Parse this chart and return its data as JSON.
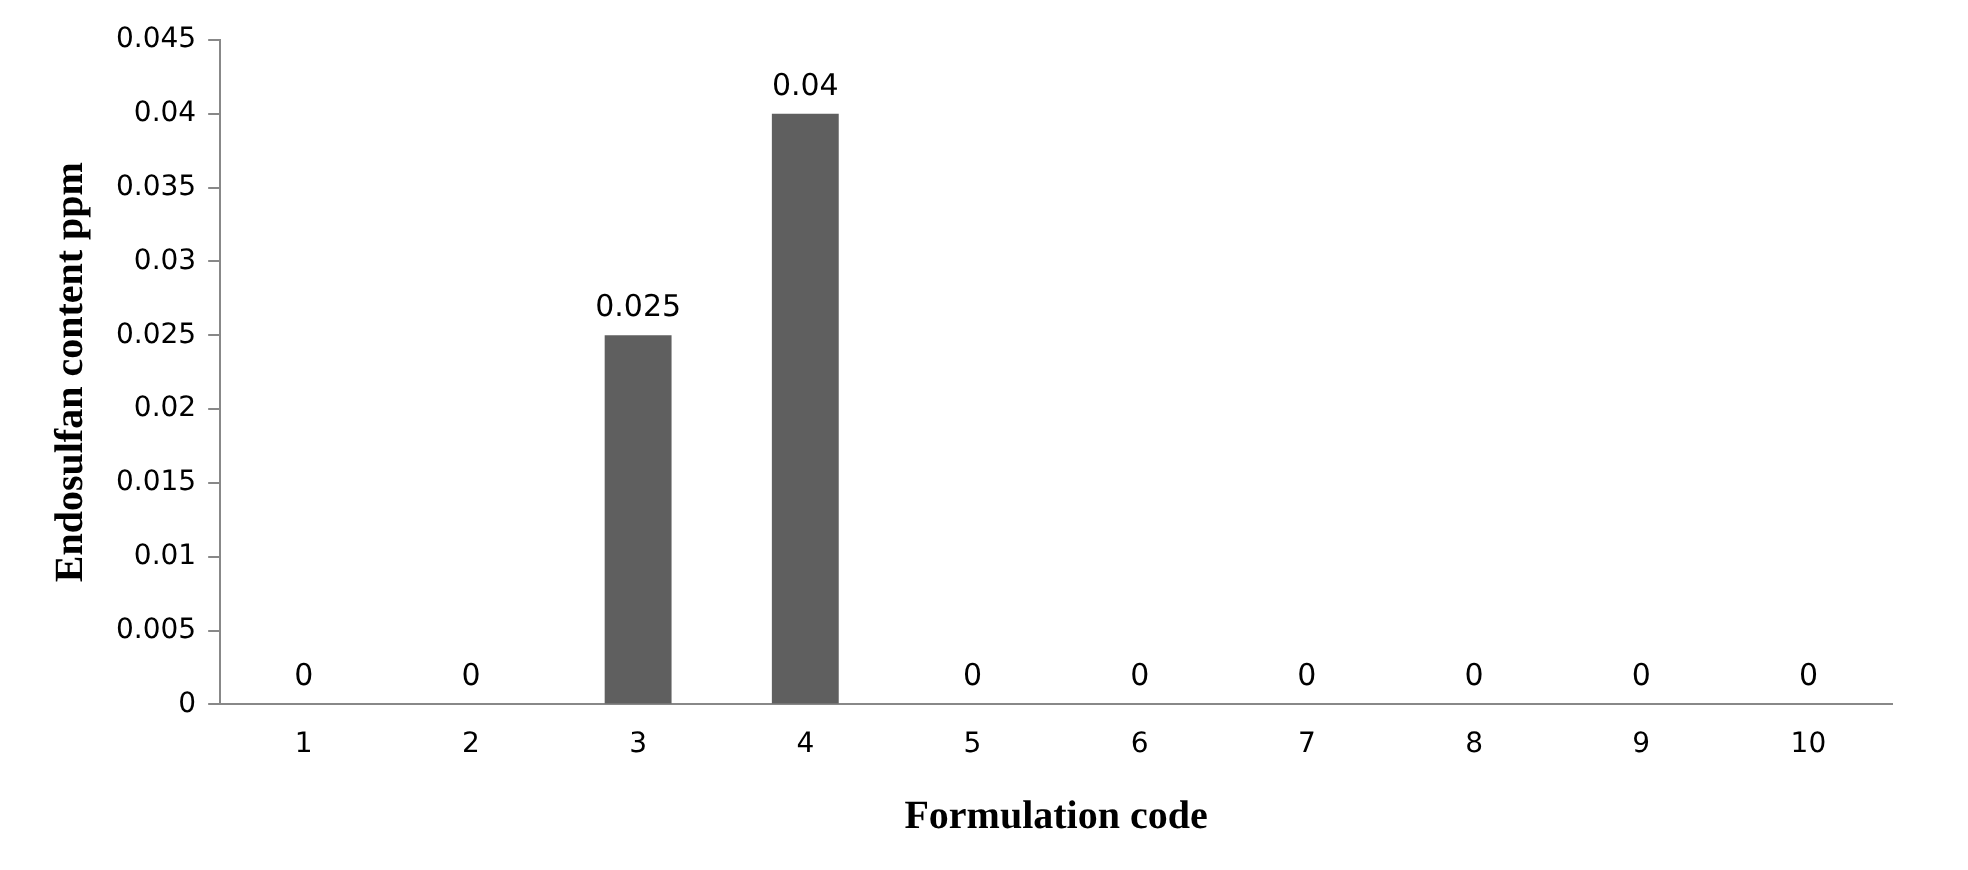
{
  "chart_data": {
    "type": "bar",
    "xlabel": "Formulation code",
    "ylabel": "Endosulfan content ppm",
    "categories": [
      "1",
      "2",
      "3",
      "4",
      "5",
      "6",
      "7",
      "8",
      "9",
      "10"
    ],
    "values": [
      0,
      0,
      0.025,
      0.04,
      0,
      0,
      0,
      0,
      0,
      0
    ],
    "color": "#5f5f5f",
    "ylim": [
      0,
      0.045
    ],
    "yticks": [
      0,
      0.005,
      0.01,
      0.015,
      0.02,
      0.025,
      0.03,
      0.035,
      0.04,
      0.045
    ],
    "grid": false,
    "legend": false,
    "data_labels": true
  }
}
